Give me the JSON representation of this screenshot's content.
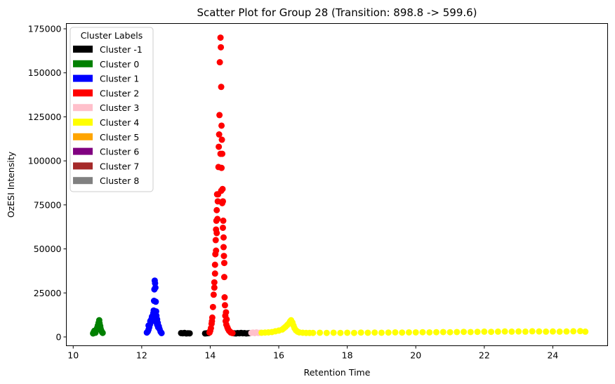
{
  "chart_data": {
    "type": "scatter",
    "title": "Scatter Plot for Group 28 (Transition: 898.8 -> 599.6)",
    "xlabel": "Retention Time",
    "ylabel": "OzESI Intensity",
    "xlim": [
      9.8,
      25.6
    ],
    "ylim": [
      -5000,
      178000
    ],
    "x_ticks": [
      10,
      12,
      14,
      16,
      18,
      20,
      22,
      24
    ],
    "y_ticks": [
      0,
      25000,
      50000,
      75000,
      100000,
      125000,
      150000,
      175000
    ],
    "x_tick_labels": [
      "10",
      "12",
      "14",
      "16",
      "18",
      "20",
      "22",
      "24"
    ],
    "y_tick_labels": [
      "0",
      "25000",
      "50000",
      "75000",
      "100000",
      "125000",
      "150000",
      "175000"
    ],
    "grid": false,
    "legend": {
      "title": "Cluster Labels",
      "placement": "top-left",
      "entries": [
        {
          "label": "Cluster -1",
          "color": "#000000"
        },
        {
          "label": "Cluster 0",
          "color": "#008000"
        },
        {
          "label": "Cluster 1",
          "color": "#0000ff"
        },
        {
          "label": "Cluster 2",
          "color": "#ff0000"
        },
        {
          "label": "Cluster 3",
          "color": "#ffc0cb"
        },
        {
          "label": "Cluster 4",
          "color": "#ffff00"
        },
        {
          "label": "Cluster 5",
          "color": "#ffa500"
        },
        {
          "label": "Cluster 6",
          "color": "#800080"
        },
        {
          "label": "Cluster 7",
          "color": "#a52a2a"
        },
        {
          "label": "Cluster 8",
          "color": "#808080"
        }
      ]
    },
    "series": [
      {
        "name": "Cluster -1",
        "color": "#000000",
        "points": [
          [
            13.15,
            2200
          ],
          [
            13.2,
            2100
          ],
          [
            13.25,
            2300
          ],
          [
            13.3,
            2000
          ],
          [
            13.35,
            2100
          ],
          [
            13.4,
            2050
          ],
          [
            13.85,
            2000
          ],
          [
            13.9,
            2100
          ],
          [
            13.95,
            2200
          ],
          [
            14.7,
            2100
          ],
          [
            14.75,
            2000
          ],
          [
            14.8,
            2200
          ],
          [
            14.85,
            2100
          ],
          [
            14.9,
            2300
          ],
          [
            14.95,
            2100
          ],
          [
            15.0,
            2200
          ],
          [
            15.05,
            2000
          ],
          [
            15.1,
            2100
          ],
          [
            15.15,
            2200
          ]
        ]
      },
      {
        "name": "Cluster 0",
        "color": "#008000",
        "points": [
          [
            10.58,
            2000
          ],
          [
            10.6,
            2800
          ],
          [
            10.62,
            3500
          ],
          [
            10.65,
            2400
          ],
          [
            10.68,
            4200
          ],
          [
            10.7,
            5200
          ],
          [
            10.72,
            6500
          ],
          [
            10.74,
            8000
          ],
          [
            10.76,
            9500
          ],
          [
            10.77,
            7800
          ],
          [
            10.79,
            6200
          ],
          [
            10.8,
            4800
          ],
          [
            10.82,
            3600
          ],
          [
            10.84,
            2800
          ],
          [
            10.86,
            2300
          ]
        ]
      },
      {
        "name": "Cluster 1",
        "color": "#0000ff",
        "points": [
          [
            12.15,
            2500
          ],
          [
            12.18,
            3200
          ],
          [
            12.2,
            4200
          ],
          [
            12.22,
            5500
          ],
          [
            12.24,
            7000
          ],
          [
            12.26,
            8500
          ],
          [
            12.28,
            10000
          ],
          [
            12.3,
            11500
          ],
          [
            12.32,
            12000
          ],
          [
            12.34,
            13500
          ],
          [
            12.35,
            15000
          ],
          [
            12.36,
            20500
          ],
          [
            12.37,
            27000
          ],
          [
            12.38,
            32000
          ],
          [
            12.39,
            30500
          ],
          [
            12.4,
            28000
          ],
          [
            12.41,
            20000
          ],
          [
            12.42,
            14500
          ],
          [
            12.43,
            12000
          ],
          [
            12.45,
            10000
          ],
          [
            12.47,
            8000
          ],
          [
            12.5,
            6000
          ],
          [
            12.52,
            4500
          ],
          [
            12.55,
            3000
          ],
          [
            12.58,
            2200
          ],
          [
            12.2,
            6500
          ],
          [
            12.25,
            9000
          ],
          [
            12.45,
            7000
          ],
          [
            12.48,
            5500
          ],
          [
            12.38,
            9000
          ]
        ]
      },
      {
        "name": "Cluster 2",
        "color": "#ff0000",
        "points": [
          [
            13.98,
            2500
          ],
          [
            14.0,
            3500
          ],
          [
            14.02,
            5000
          ],
          [
            14.04,
            7500
          ],
          [
            14.06,
            11000
          ],
          [
            14.08,
            17000
          ],
          [
            14.1,
            24000
          ],
          [
            14.12,
            31000
          ],
          [
            14.14,
            41000
          ],
          [
            14.15,
            47000
          ],
          [
            14.16,
            55000
          ],
          [
            14.17,
            61000
          ],
          [
            14.18,
            66000
          ],
          [
            14.19,
            72000
          ],
          [
            14.2,
            81000
          ],
          [
            14.22,
            77000
          ],
          [
            14.24,
            96500
          ],
          [
            14.25,
            108000
          ],
          [
            14.26,
            115000
          ],
          [
            14.27,
            126000
          ],
          [
            14.28,
            156000
          ],
          [
            14.3,
            170000
          ],
          [
            14.31,
            164500
          ],
          [
            14.32,
            142000
          ],
          [
            14.33,
            120000
          ],
          [
            14.34,
            112000
          ],
          [
            14.35,
            104000
          ],
          [
            14.36,
            84000
          ],
          [
            14.37,
            77000
          ],
          [
            14.38,
            66000
          ],
          [
            14.39,
            56500
          ],
          [
            14.4,
            46000
          ],
          [
            14.41,
            34000
          ],
          [
            14.42,
            22500
          ],
          [
            14.43,
            18000
          ],
          [
            14.44,
            12000
          ],
          [
            14.45,
            9000
          ],
          [
            14.47,
            7000
          ],
          [
            14.5,
            5500
          ],
          [
            14.52,
            4500
          ],
          [
            14.55,
            3500
          ],
          [
            14.58,
            3000
          ],
          [
            14.6,
            2500
          ],
          [
            14.65,
            2200
          ],
          [
            14.17,
            49000
          ],
          [
            14.19,
            59000
          ],
          [
            14.21,
            67000
          ],
          [
            14.23,
            81000
          ],
          [
            14.33,
            96000
          ],
          [
            14.35,
            76000
          ],
          [
            14.37,
            62000
          ],
          [
            14.39,
            51000
          ],
          [
            14.41,
            42000
          ],
          [
            14.3,
            104000
          ],
          [
            14.32,
            83000
          ],
          [
            14.12,
            28000
          ],
          [
            14.14,
            36000
          ],
          [
            14.46,
            14000
          ],
          [
            14.48,
            10000
          ],
          [
            14.05,
            9000
          ]
        ]
      },
      {
        "name": "Cluster 3",
        "color": "#ffc0cb",
        "points": [
          [
            15.2,
            2300
          ],
          [
            15.25,
            2500
          ],
          [
            15.3,
            2200
          ],
          [
            15.35,
            2600
          ],
          [
            15.4,
            2300
          ],
          [
            15.45,
            2400
          ]
        ]
      },
      {
        "name": "Cluster 4",
        "color": "#ffff00",
        "points": [
          [
            15.5,
            2400
          ],
          [
            15.6,
            2500
          ],
          [
            15.7,
            2600
          ],
          [
            15.8,
            2800
          ],
          [
            15.9,
            3200
          ],
          [
            16.0,
            3600
          ],
          [
            16.1,
            4200
          ],
          [
            16.15,
            5000
          ],
          [
            16.2,
            5800
          ],
          [
            16.25,
            6800
          ],
          [
            16.3,
            7800
          ],
          [
            16.33,
            8800
          ],
          [
            16.36,
            9500
          ],
          [
            16.4,
            8200
          ],
          [
            16.43,
            6500
          ],
          [
            16.46,
            5000
          ],
          [
            16.5,
            3800
          ],
          [
            16.55,
            3000
          ],
          [
            16.6,
            2600
          ],
          [
            16.7,
            2400
          ],
          [
            16.8,
            2300
          ],
          [
            16.9,
            2300
          ],
          [
            17.0,
            2300
          ],
          [
            17.2,
            2400
          ],
          [
            17.4,
            2300
          ],
          [
            17.6,
            2400
          ],
          [
            17.8,
            2300
          ],
          [
            18.0,
            2400
          ],
          [
            18.2,
            2300
          ],
          [
            18.4,
            2500
          ],
          [
            18.6,
            2400
          ],
          [
            18.8,
            2500
          ],
          [
            19.0,
            2400
          ],
          [
            19.2,
            2500
          ],
          [
            19.4,
            2600
          ],
          [
            19.6,
            2500
          ],
          [
            19.8,
            2600
          ],
          [
            20.0,
            2600
          ],
          [
            20.2,
            2700
          ],
          [
            20.4,
            2600
          ],
          [
            20.6,
            2700
          ],
          [
            20.8,
            2800
          ],
          [
            21.0,
            2700
          ],
          [
            21.2,
            2800
          ],
          [
            21.4,
            2900
          ],
          [
            21.6,
            2800
          ],
          [
            21.8,
            2900
          ],
          [
            22.0,
            3000
          ],
          [
            22.2,
            2900
          ],
          [
            22.4,
            3000
          ],
          [
            22.6,
            3100
          ],
          [
            22.8,
            3000
          ],
          [
            23.0,
            3100
          ],
          [
            23.2,
            3000
          ],
          [
            23.4,
            3200
          ],
          [
            23.6,
            3100
          ],
          [
            23.8,
            3000
          ],
          [
            24.0,
            3100
          ],
          [
            24.2,
            3000
          ],
          [
            24.4,
            3100
          ],
          [
            24.6,
            3200
          ],
          [
            24.8,
            3300
          ],
          [
            24.95,
            3000
          ]
        ]
      }
    ]
  }
}
